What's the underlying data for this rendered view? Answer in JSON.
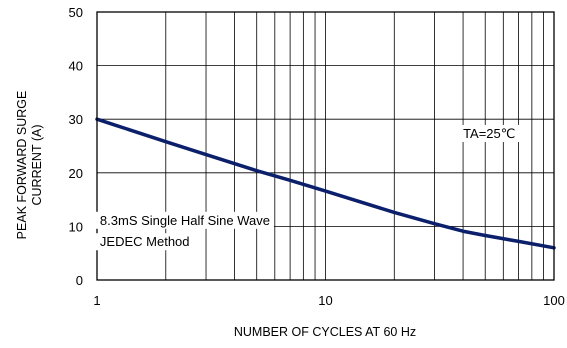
{
  "chart_data": {
    "type": "line",
    "xscale": "log",
    "xlim": [
      1,
      100
    ],
    "ylim": [
      0,
      50
    ],
    "xlabel": "NUMBER OF CYCLES AT 60 Hz",
    "ylabel_lines": [
      "PEAK FORWARD SURGE",
      "CURRENT (A)"
    ],
    "xticks": [
      {
        "value": 1,
        "label": "1"
      },
      {
        "value": 10,
        "label": "10"
      },
      {
        "value": 100,
        "label": "100"
      }
    ],
    "yticks": [
      {
        "value": 0,
        "label": "0"
      },
      {
        "value": 10,
        "label": "10"
      },
      {
        "value": 20,
        "label": "20"
      },
      {
        "value": 30,
        "label": "30"
      },
      {
        "value": 40,
        "label": "40"
      },
      {
        "value": 50,
        "label": "50"
      }
    ],
    "grid": true,
    "series": [
      {
        "color": "#0b1f6b",
        "x": [
          1,
          2,
          3,
          5,
          7,
          10,
          20,
          30,
          40,
          50,
          70,
          100
        ],
        "y": [
          30,
          25.8,
          23.4,
          20.4,
          18.6,
          16.6,
          12.6,
          10.5,
          9.1,
          8.3,
          7.2,
          6.0
        ]
      }
    ],
    "annotations": [
      {
        "text": "TA=25℃",
        "x": 40,
        "y": 26.5
      },
      {
        "text": "8.3mS Single Half Sine Wave",
        "x": 1.03,
        "y": 10.3
      },
      {
        "text": "JEDEC Method",
        "x": 1.03,
        "y": 6.3
      }
    ]
  }
}
